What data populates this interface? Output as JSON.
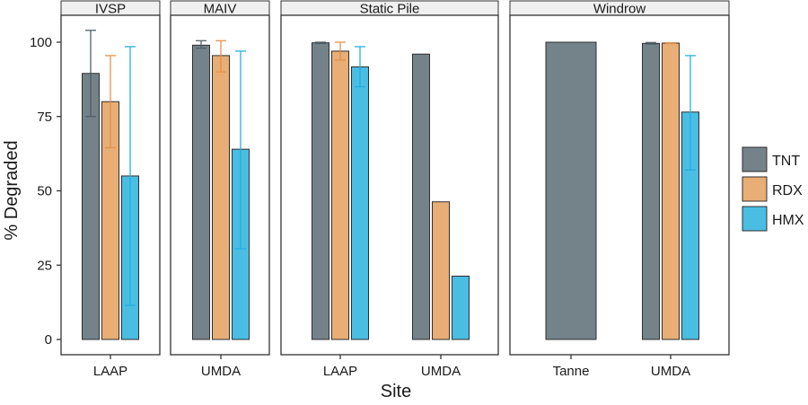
{
  "chart_data": {
    "type": "bar",
    "xlabel": "Site",
    "ylabel": "% Degraded",
    "ylim": [
      0,
      100
    ],
    "yticks": [
      "0",
      "25",
      "50",
      "75",
      "100"
    ],
    "grid": false,
    "legend": {
      "placement": "right",
      "entries": [
        {
          "name": "TNT",
          "color": "#74838a"
        },
        {
          "name": "RDX",
          "color": "#e8ae76"
        },
        {
          "name": "HMX",
          "color": "#4abde3"
        }
      ]
    },
    "error_colors": {
      "TNT": "#4d5d64",
      "RDX": "#e3904a",
      "HMX": "#22aede"
    },
    "panels": [
      {
        "title": "IVSP",
        "sites": [
          {
            "site": "LAAP",
            "bars": [
              {
                "compound": "TNT",
                "value": 89.5,
                "err": [
                  75,
                  104
                ]
              },
              {
                "compound": "RDX",
                "value": 80,
                "err": [
                  64.5,
                  95.5
                ]
              },
              {
                "compound": "HMX",
                "value": 55,
                "err": [
                  11.5,
                  98.5
                ]
              }
            ]
          }
        ]
      },
      {
        "title": "MAIV",
        "sites": [
          {
            "site": "UMDA",
            "bars": [
              {
                "compound": "TNT",
                "value": 99,
                "err": [
                  98,
                  100.5
                ]
              },
              {
                "compound": "RDX",
                "value": 95.5,
                "err": [
                  90,
                  100.5
                ]
              },
              {
                "compound": "HMX",
                "value": 64,
                "err": [
                  30.5,
                  97
                ]
              }
            ]
          }
        ]
      },
      {
        "title": "Static Pile",
        "sites": [
          {
            "site": "LAAP",
            "bars": [
              {
                "compound": "TNT",
                "value": 99.8,
                "err": [
                  99.6,
                  100
                ]
              },
              {
                "compound": "RDX",
                "value": 97,
                "err": [
                  94,
                  100
                ]
              },
              {
                "compound": "HMX",
                "value": 91.7,
                "err": [
                  85,
                  98.5
                ]
              }
            ]
          },
          {
            "site": "UMDA",
            "bars": [
              {
                "compound": "TNT",
                "value": 96
              },
              {
                "compound": "RDX",
                "value": 46.3
              },
              {
                "compound": "HMX",
                "value": 21.3
              }
            ]
          }
        ]
      },
      {
        "title": "Windrow",
        "sites": [
          {
            "site": "Tanne",
            "bars": [
              {
                "compound": "TNT",
                "value": 100
              }
            ]
          },
          {
            "site": "UMDA",
            "bars": [
              {
                "compound": "TNT",
                "value": 99.6,
                "err": [
                  99.4,
                  99.9
                ]
              },
              {
                "compound": "RDX",
                "value": 99.7,
                "err": [
                  99.6,
                  99.8
                ]
              },
              {
                "compound": "HMX",
                "value": 76.5,
                "err": [
                  57,
                  95.5
                ]
              }
            ]
          }
        ]
      }
    ]
  }
}
